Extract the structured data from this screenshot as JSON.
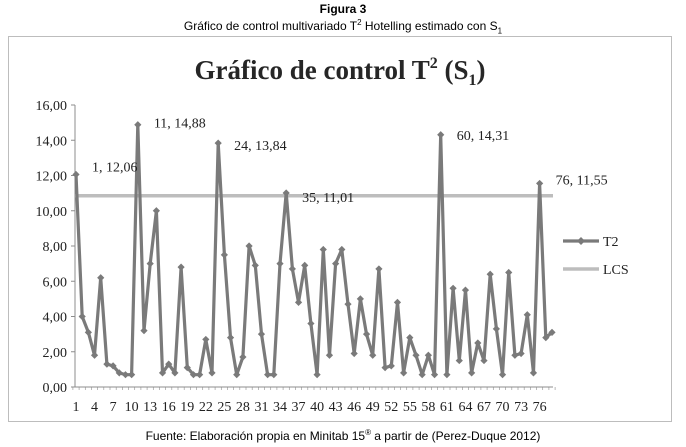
{
  "figure": {
    "label": "Figura 3",
    "caption_prefix": "Gráfico de control multivariado T",
    "caption_sup": "2",
    "caption_mid": " Hotelling estimado con S",
    "caption_sub": "1"
  },
  "source": {
    "prefix": "Fuente: Elaboración propia en Minitab 15",
    "sup": "®",
    "suffix": " a partir de (Perez-Duque 2012)"
  },
  "colors": {
    "t2_line": "#7a7a7a",
    "lcs_line": "#bdbdbd",
    "axis": "#8c8c8c"
  },
  "chart_data": {
    "type": "line",
    "title_main": "Gráfico de control T",
    "title_sup": "2",
    "title_open": " (S",
    "title_sub": "1",
    "title_close": ")",
    "ylim": [
      0,
      16
    ],
    "yticks": [
      "0,00",
      "2,00",
      "4,00",
      "6,00",
      "8,00",
      "10,00",
      "12,00",
      "14,00",
      "16,00"
    ],
    "x_tick_labels": [
      "1",
      "4",
      "7",
      "10",
      "13",
      "16",
      "19",
      "22",
      "25",
      "28",
      "31",
      "34",
      "37",
      "40",
      "43",
      "46",
      "49",
      "52",
      "55",
      "58",
      "61",
      "64",
      "67",
      "70",
      "73",
      "76"
    ],
    "x_tick_values": [
      1,
      4,
      7,
      10,
      13,
      16,
      19,
      22,
      25,
      28,
      31,
      34,
      37,
      40,
      43,
      46,
      49,
      52,
      55,
      58,
      61,
      64,
      67,
      70,
      73,
      76
    ],
    "x_count": 78,
    "series": [
      {
        "name": "T2",
        "values": [
          12.06,
          4.0,
          3.1,
          1.8,
          6.2,
          1.3,
          1.2,
          0.8,
          0.7,
          0.7,
          14.88,
          3.2,
          7.0,
          10.0,
          0.8,
          1.3,
          0.8,
          6.8,
          1.1,
          0.7,
          0.7,
          2.7,
          0.8,
          13.84,
          7.5,
          2.8,
          0.7,
          1.7,
          8.0,
          6.9,
          3.0,
          0.7,
          0.7,
          7.0,
          11.01,
          6.7,
          4.8,
          6.9,
          3.6,
          0.7,
          7.8,
          1.8,
          7.0,
          7.8,
          4.7,
          1.9,
          5.0,
          3.0,
          1.8,
          6.7,
          1.1,
          1.2,
          4.8,
          0.8,
          2.8,
          1.8,
          0.7,
          1.8,
          0.7,
          14.31,
          0.7,
          5.6,
          1.5,
          5.5,
          0.8,
          2.5,
          1.5,
          6.4,
          3.3,
          0.7,
          6.5,
          1.8,
          1.9,
          4.1,
          0.8,
          11.55,
          2.8,
          3.1
        ]
      },
      {
        "name": "LCS",
        "values": [
          10.85
        ]
      }
    ],
    "annotations": [
      {
        "x": 1,
        "y": 12.06,
        "text": "1, 12,06"
      },
      {
        "x": 11,
        "y": 14.88,
        "text": "11, 14,88"
      },
      {
        "x": 24,
        "y": 13.84,
        "text": "24, 13,84"
      },
      {
        "x": 35,
        "y": 11.01,
        "text": "35, 11,01"
      },
      {
        "x": 60,
        "y": 14.31,
        "text": "60, 14,31"
      },
      {
        "x": 76,
        "y": 11.55,
        "text": "76, 11,55"
      }
    ],
    "grid": false,
    "legend": "right"
  }
}
